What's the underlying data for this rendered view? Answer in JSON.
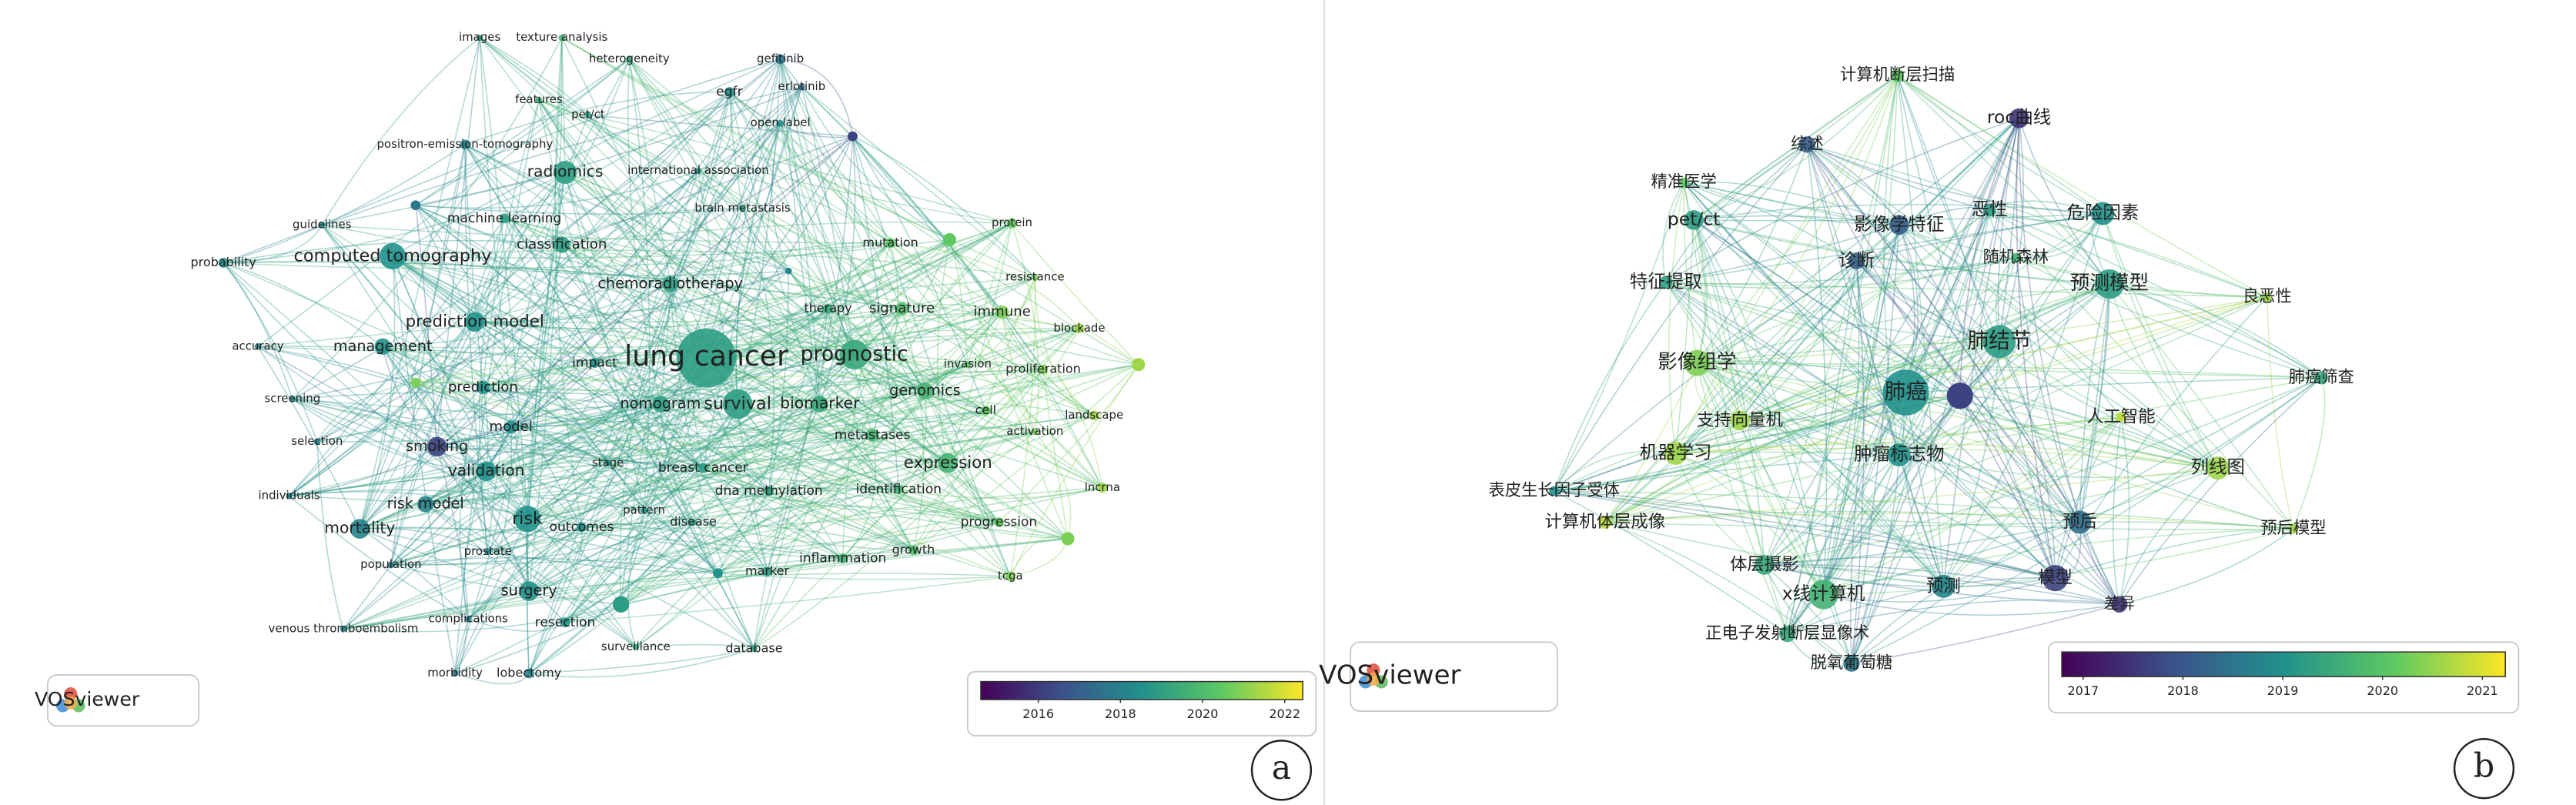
{
  "panel_a": {
    "nodes": [
      "images",
      "texture analysis",
      "heterogeneity",
      "gefitinib",
      "erlotinib",
      "egfr",
      "features",
      "pet/ct",
      "open label",
      "positron-emission-tomography",
      "radiomics",
      "international association",
      "brain metastasis",
      "machine learning",
      "guidelines",
      "protein",
      "classification",
      "mutation",
      "computed tomography",
      "probability",
      "resistance",
      "chemoradiotherapy",
      "therapy",
      "signature",
      "immune",
      "prediction model",
      "blockade",
      "management",
      "accuracy",
      "lung cancer",
      "prognostic",
      "impact",
      "invasion",
      "proliferation",
      "prediction",
      "genomics",
      "nomogram",
      "survival",
      "biomarker",
      "screening",
      "cell",
      "landscape",
      "model",
      "activation",
      "metastases",
      "selection",
      "smoking",
      "expression",
      "stage",
      "breast cancer",
      "validation",
      "lncrna",
      "identification",
      "individuals",
      "dna methylation",
      "risk model",
      "pattern",
      "progression",
      "risk",
      "outcomes",
      "disease",
      "mortality",
      "prostate",
      "inflammation",
      "growth",
      "population",
      "marker",
      "surgery",
      "tcga",
      "complications",
      "resection",
      "venous thromboembolism",
      "surveillance",
      "database",
      "morbidity",
      "lobectomy"
    ],
    "colorbar_ticks": [
      2016,
      2018,
      2020,
      2022
    ],
    "logo": "VOSviewer",
    "label": "a"
  },
  "panel_b": {
    "nodes": [
      "计算机断层扫描",
      "roc曲线",
      "综述",
      "精准医学",
      "恶性",
      "危险因素",
      "影像学特征",
      "pet/ct",
      "诊断",
      "随机森林",
      "预测模型",
      "良恶性",
      "特征提取",
      "肺结节",
      "影像组学",
      "肺癌",
      "肺癌筛查",
      "支持向量机",
      "人工智能",
      "机器学习",
      "肿瘤标志物",
      "列线图",
      "表皮生长因子受体",
      "计算机体层成像",
      "预后",
      "预后模型",
      "体层摄影",
      "模型",
      "x线计算机",
      "预测",
      "差异",
      "正电子发射断层显像术",
      "脱氧葡萄糖"
    ],
    "colorbar_ticks": [
      2017,
      2018,
      2019,
      2020,
      2021
    ],
    "logo": "VOSviewer",
    "label": "b"
  }
}
